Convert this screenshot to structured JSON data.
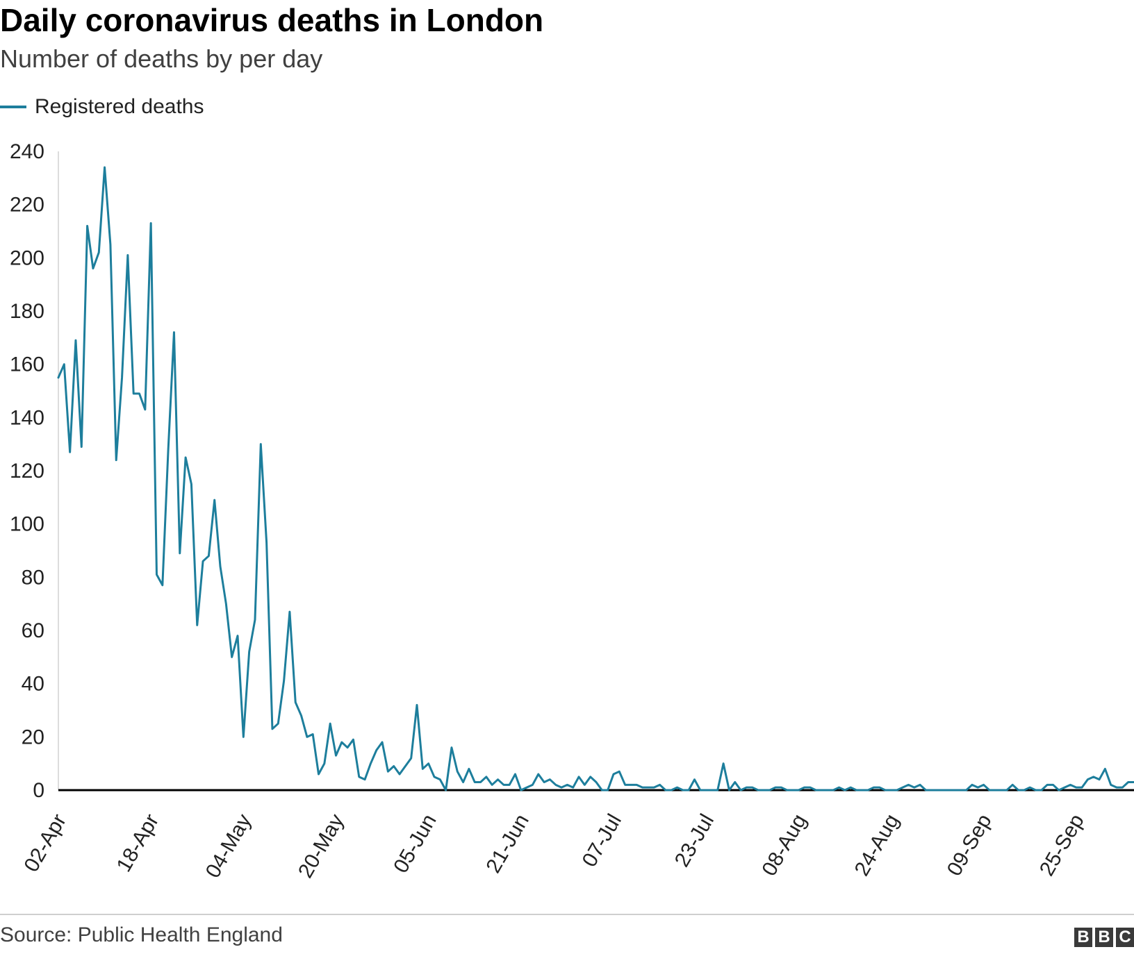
{
  "title": "Daily coronavirus deaths in London",
  "subtitle": "Number of deaths by per day",
  "legend": {
    "label": "Registered deaths",
    "color": "#1d7e9c"
  },
  "source": "Source: Public Health England",
  "logo": {
    "letters": [
      "B",
      "B",
      "C"
    ]
  },
  "chart_data": {
    "type": "line",
    "title": "Daily coronavirus deaths in London",
    "subtitle": "Number of deaths by per day",
    "xlabel": "",
    "ylabel": "",
    "ylim": [
      0,
      240
    ],
    "yticks": [
      0,
      20,
      40,
      60,
      80,
      100,
      120,
      140,
      160,
      180,
      200,
      220,
      240
    ],
    "xticks": [
      "02-Apr",
      "18-Apr",
      "04-May",
      "20-May",
      "05-Jun",
      "21-Jun",
      "07-Jul",
      "23-Jul",
      "08-Aug",
      "24-Aug",
      "09-Sep",
      "25-Sep"
    ],
    "x_start": "02-Apr",
    "grid": false,
    "legend_position": "top-left",
    "series": [
      {
        "name": "Registered deaths",
        "color": "#1d7e9c",
        "values": [
          155,
          160,
          127,
          169,
          129,
          212,
          196,
          202,
          234,
          205,
          124,
          155,
          201,
          149,
          149,
          143,
          213,
          81,
          77,
          128,
          172,
          89,
          125,
          115,
          62,
          86,
          88,
          109,
          84,
          70,
          50,
          58,
          20,
          52,
          64,
          130,
          93,
          23,
          25,
          41,
          67,
          33,
          28,
          20,
          21,
          6,
          10,
          25,
          13,
          18,
          16,
          19,
          5,
          4,
          10,
          15,
          18,
          7,
          9,
          6,
          9,
          12,
          32,
          8,
          10,
          5,
          4,
          0,
          16,
          7,
          3,
          8,
          3,
          3,
          5,
          2,
          4,
          2,
          2,
          6,
          0,
          1,
          2,
          6,
          3,
          4,
          2,
          1,
          2,
          1,
          5,
          2,
          5,
          3,
          0,
          0,
          6,
          7,
          2,
          2,
          2,
          1,
          1,
          1,
          2,
          0,
          0,
          1,
          0,
          0,
          4,
          0,
          0,
          0,
          0,
          10,
          0,
          3,
          0,
          1,
          1,
          0,
          0,
          0,
          1,
          1,
          0,
          0,
          0,
          1,
          1,
          0,
          0,
          0,
          0,
          1,
          0,
          1,
          0,
          0,
          0,
          1,
          1,
          0,
          0,
          0,
          1,
          2,
          1,
          2,
          0,
          0,
          0,
          0,
          0,
          0,
          0,
          0,
          2,
          1,
          2,
          0,
          0,
          0,
          0,
          2,
          0,
          0,
          1,
          0,
          0,
          2,
          2,
          0,
          1,
          2,
          1,
          1,
          4,
          5,
          4,
          8,
          2,
          1,
          1,
          3,
          3
        ]
      }
    ]
  }
}
